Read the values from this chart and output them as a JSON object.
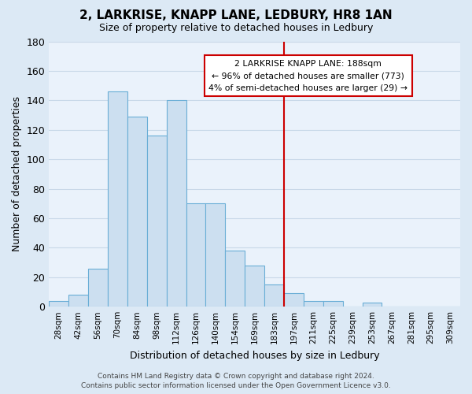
{
  "title": "2, LARKRISE, KNAPP LANE, LEDBURY, HR8 1AN",
  "subtitle": "Size of property relative to detached houses in Ledbury",
  "xlabel": "Distribution of detached houses by size in Ledbury",
  "ylabel": "Number of detached properties",
  "bar_color": "#ccdff0",
  "bar_edge_color": "#6aaed6",
  "bin_labels": [
    "28sqm",
    "42sqm",
    "56sqm",
    "70sqm",
    "84sqm",
    "98sqm",
    "112sqm",
    "126sqm",
    "140sqm",
    "154sqm",
    "169sqm",
    "183sqm",
    "197sqm",
    "211sqm",
    "225sqm",
    "239sqm",
    "253sqm",
    "267sqm",
    "281sqm",
    "295sqm",
    "309sqm"
  ],
  "bar_heights": [
    4,
    8,
    26,
    146,
    129,
    116,
    140,
    70,
    70,
    38,
    28,
    15,
    9,
    4,
    4,
    0,
    3,
    0,
    0,
    0,
    0
  ],
  "ylim": [
    0,
    180
  ],
  "yticks": [
    0,
    20,
    40,
    60,
    80,
    100,
    120,
    140,
    160,
    180
  ],
  "vline_color": "#cc0000",
  "annotation_title": "2 LARKRISE KNAPP LANE: 188sqm",
  "annotation_line1": "← 96% of detached houses are smaller (773)",
  "annotation_line2": "4% of semi-detached houses are larger (29) →",
  "footer_line1": "Contains HM Land Registry data © Crown copyright and database right 2024.",
  "footer_line2": "Contains public sector information licensed under the Open Government Licence v3.0.",
  "grid_color": "#c8d8e8",
  "plot_bg_color": "#eaf2fb",
  "fig_bg_color": "#dce9f5"
}
